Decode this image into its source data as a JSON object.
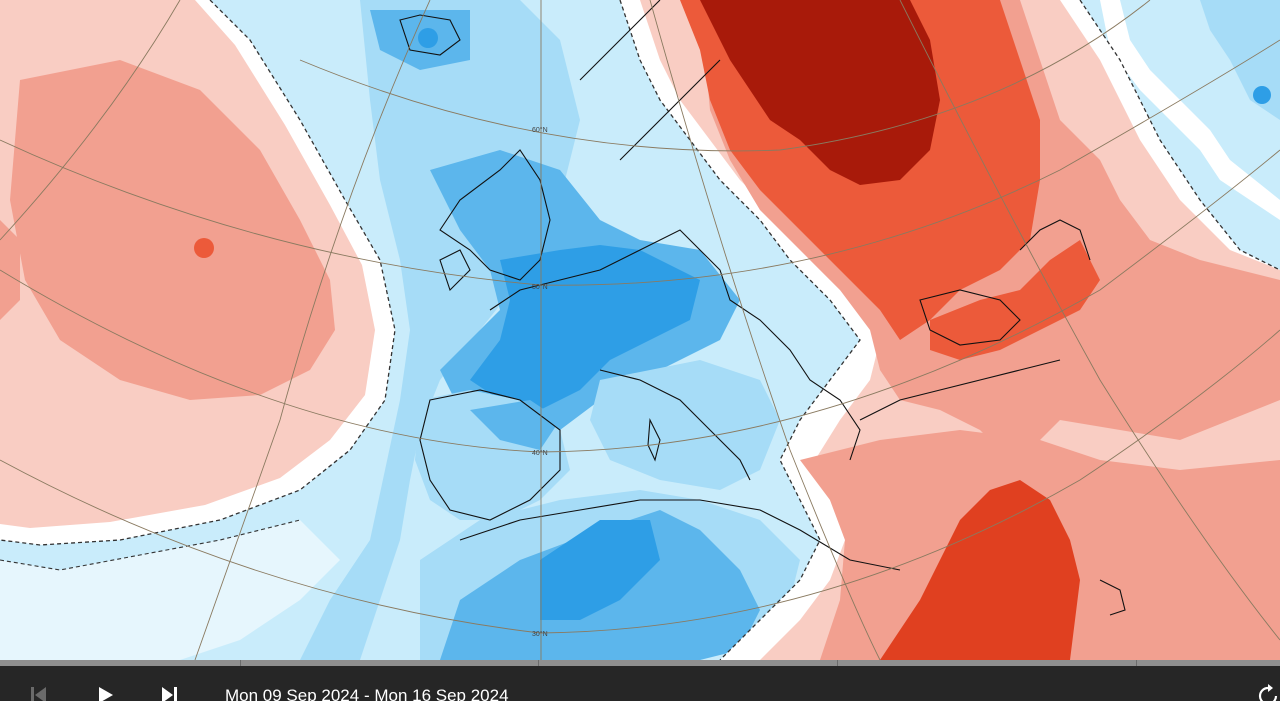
{
  "map": {
    "latitude_labels": [
      "60°N",
      "50°N",
      "40°N",
      "30°N"
    ],
    "colors": {
      "ocean_light_blue": "#c9ecfb",
      "blue_light": "#a6dcf7",
      "blue_mid": "#5cb6ec",
      "blue_strong": "#2e9ee6",
      "white_band": "#ffffff",
      "pink_light": "#f9cdc3",
      "salmon": "#f2a090",
      "red": "#ec5a3a",
      "red_strong": "#e04020",
      "dark_red": "#a81a0a",
      "coast": "#111111",
      "grid": "#8a7a60"
    }
  },
  "controls": {
    "first_icon": "skip-to-start",
    "play_icon": "play",
    "last_icon": "skip-to-end",
    "refresh_icon": "refresh",
    "date_range": "Mon 09 Sep 2024 - Mon 16 Sep 2024"
  }
}
